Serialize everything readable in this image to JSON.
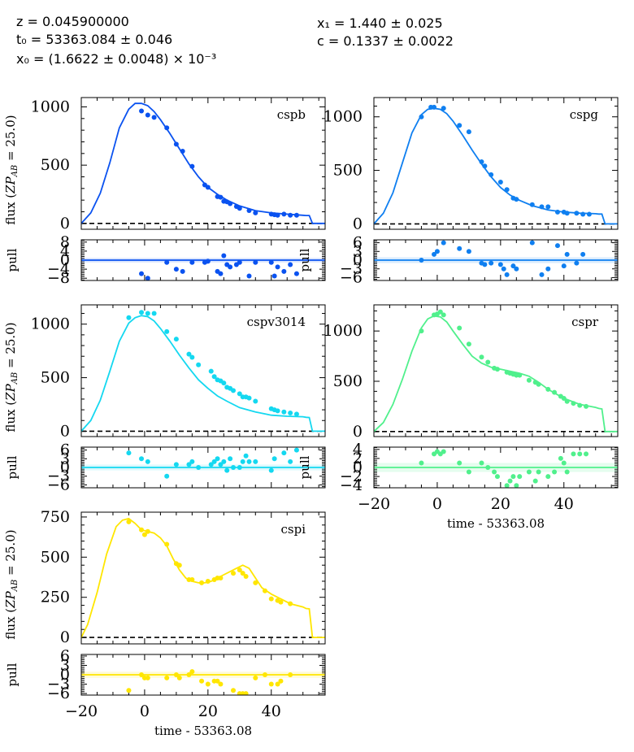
{
  "header": {
    "z": "z = 0.045900000",
    "t0": "t₀ = 53363.084 ± 0.046",
    "x0": "x₀ = (1.6622 ± 0.0048) × 10⁻³",
    "x1": "x₁ = 1.440 ± 0.025",
    "c": "c = 0.1337 ± 0.0022"
  },
  "chart_data": [
    {
      "type": "scatter",
      "band": "cspb",
      "color": "#0a52f0",
      "xlabel": "",
      "ylabel": "flux (ZP_AB = 25.0)",
      "xlim": [
        -20,
        57
      ],
      "flux": {
        "ylim": [
          -50,
          1080
        ],
        "yticks": [
          0,
          500,
          1000
        ],
        "model_x": [
          -20,
          -17,
          -14,
          -11,
          -8,
          -5,
          -3,
          -1,
          1,
          3,
          5,
          8,
          11,
          14,
          17,
          20,
          23,
          26,
          30,
          35,
          40,
          45,
          50,
          51,
          52,
          53,
          57
        ],
        "model_y": [
          0,
          90,
          260,
          520,
          820,
          980,
          1030,
          1030,
          1010,
          960,
          890,
          770,
          640,
          510,
          400,
          310,
          250,
          200,
          150,
          110,
          90,
          80,
          70,
          68,
          68,
          0,
          0
        ],
        "points_x": [
          -1,
          1,
          3,
          7,
          10,
          12,
          15,
          19,
          20,
          23,
          24,
          25,
          26,
          27,
          29,
          30,
          33,
          35,
          40,
          41,
          42,
          44,
          46,
          48
        ],
        "points_y": [
          965,
          930,
          910,
          820,
          680,
          620,
          490,
          330,
          310,
          230,
          225,
          190,
          185,
          170,
          145,
          130,
          110,
          90,
          80,
          75,
          70,
          80,
          70,
          70
        ]
      },
      "pull": {
        "ylim": [
          -9,
          9
        ],
        "yticks": [
          -8,
          -4,
          0,
          4,
          8
        ],
        "yticklabels": [
          "−8",
          "−4",
          "0",
          "4",
          "8"
        ],
        "points_x": [
          -1,
          1,
          7,
          10,
          12,
          15,
          19,
          20,
          23,
          24,
          25,
          26,
          27,
          29,
          30,
          33,
          35,
          40,
          41,
          42,
          44,
          46,
          48
        ],
        "points_y": [
          -6,
          -8,
          -1,
          -4,
          -5,
          -1,
          -1,
          -0.5,
          -5,
          -6,
          2,
          -2,
          -3,
          -2,
          -1,
          -7,
          -1,
          -1,
          -7,
          -3,
          -5,
          -2,
          -6
        ]
      }
    },
    {
      "type": "scatter",
      "band": "cspg",
      "color": "#0f7ff0",
      "xlabel": "",
      "ylabel": "",
      "xlim": [
        -20,
        57
      ],
      "flux": {
        "ylim": [
          -50,
          1180
        ],
        "yticks": [
          0,
          500,
          1000
        ],
        "model_x": [
          -20,
          -17,
          -14,
          -11,
          -8,
          -5,
          -3,
          -1,
          1,
          3,
          5,
          8,
          11,
          14,
          17,
          20,
          23,
          26,
          30,
          35,
          40,
          45,
          50,
          51,
          52,
          53,
          57
        ],
        "model_y": [
          0,
          100,
          290,
          570,
          850,
          1020,
          1070,
          1080,
          1070,
          1030,
          960,
          830,
          690,
          560,
          440,
          340,
          270,
          220,
          170,
          130,
          110,
          100,
          95,
          92,
          92,
          0,
          0
        ],
        "points_x": [
          -5,
          -2,
          -1,
          2,
          7,
          10,
          14,
          15,
          17,
          20,
          22,
          24,
          25,
          30,
          33,
          35,
          38,
          40,
          41,
          44,
          46,
          48
        ],
        "points_y": [
          1000,
          1090,
          1090,
          1080,
          920,
          860,
          580,
          540,
          460,
          390,
          320,
          240,
          230,
          180,
          160,
          160,
          110,
          110,
          100,
          100,
          90,
          90
        ]
      },
      "pull": {
        "ylim": [
          -7,
          7
        ],
        "yticks": [
          -6,
          -3,
          0,
          3,
          6
        ],
        "yticklabels": [
          "−6",
          "−3",
          "0",
          "3",
          "6"
        ],
        "points_x": [
          -5,
          -1,
          0,
          2,
          7,
          10,
          14,
          15,
          17,
          20,
          21,
          22,
          24,
          25,
          30,
          33,
          35,
          38,
          40,
          41,
          44,
          46
        ],
        "points_y": [
          0,
          2,
          3,
          6,
          4,
          3,
          -1,
          -1.5,
          -1,
          -1.5,
          -3,
          -5,
          -2,
          -3,
          6,
          -5,
          -3,
          5,
          -2,
          2,
          -1,
          2
        ]
      }
    },
    {
      "type": "scatter",
      "band": "cspv3014",
      "color": "#14d8f0",
      "xlabel": "",
      "ylabel": "flux (ZP_AB = 25.0)",
      "xlim": [
        -20,
        57
      ],
      "flux": {
        "ylim": [
          -50,
          1180
        ],
        "yticks": [
          0,
          500,
          1000
        ],
        "model_x": [
          -20,
          -17,
          -14,
          -11,
          -8,
          -5,
          -3,
          -1,
          1,
          3,
          5,
          8,
          11,
          14,
          17,
          20,
          23,
          26,
          30,
          35,
          40,
          45,
          50,
          51,
          52,
          53,
          57
        ],
        "model_y": [
          0,
          100,
          290,
          560,
          840,
          1010,
          1060,
          1080,
          1070,
          1030,
          960,
          840,
          710,
          590,
          480,
          400,
          330,
          280,
          220,
          180,
          150,
          140,
          135,
          130,
          128,
          0,
          0
        ],
        "points_x": [
          -5,
          -1,
          1,
          3,
          7,
          10,
          14,
          15,
          17,
          21,
          22,
          23,
          24,
          25,
          26,
          27,
          28,
          30,
          31,
          32,
          33,
          35,
          40,
          41,
          42,
          44,
          46,
          48
        ],
        "points_y": [
          1060,
          1110,
          1100,
          1100,
          930,
          860,
          720,
          690,
          620,
          560,
          510,
          480,
          470,
          450,
          410,
          400,
          380,
          350,
          320,
          320,
          310,
          280,
          210,
          200,
          190,
          180,
          170,
          160
        ]
      },
      "pull": {
        "ylim": [
          -7,
          7
        ],
        "yticks": [
          -6,
          -3,
          0,
          3,
          6
        ],
        "yticklabels": [
          "−6",
          "−3",
          "0",
          "3",
          "6"
        ],
        "points_x": [
          -5,
          -1,
          1,
          7,
          10,
          14,
          15,
          17,
          21,
          22,
          23,
          24,
          25,
          26,
          27,
          28,
          30,
          31,
          32,
          33,
          35,
          40,
          41,
          44,
          46,
          48
        ],
        "points_y": [
          5,
          3,
          2,
          -3,
          1,
          1,
          2,
          0,
          1,
          2,
          3,
          1,
          2,
          -1,
          3,
          0,
          0,
          2,
          4,
          2,
          2,
          -1,
          3,
          5,
          2,
          6
        ]
      }
    },
    {
      "type": "scatter",
      "band": "cspr",
      "color": "#50f08c",
      "xlabel": "time - 53363.08",
      "ylabel": "",
      "xlim": [
        -20,
        57
      ],
      "xticks": [
        -20,
        0,
        20,
        40
      ],
      "xticklabels": [
        "−20",
        "0",
        "20",
        "40"
      ],
      "flux": {
        "ylim": [
          -50,
          1260
        ],
        "yticks": [
          0,
          500,
          1000
        ],
        "model_x": [
          -20,
          -17,
          -14,
          -11,
          -8,
          -5,
          -3,
          -1,
          1,
          3,
          5,
          8,
          11,
          14,
          17,
          20,
          23,
          26,
          29,
          32,
          35,
          40,
          45,
          50,
          51,
          52,
          53,
          57
        ],
        "model_y": [
          0,
          90,
          270,
          520,
          800,
          1030,
          1120,
          1150,
          1140,
          1090,
          1000,
          870,
          750,
          680,
          640,
          620,
          600,
          580,
          550,
          490,
          420,
          330,
          270,
          240,
          230,
          225,
          0,
          0
        ],
        "points_x": [
          -5,
          -1,
          0,
          1,
          2,
          7,
          10,
          14,
          16,
          18,
          19,
          22,
          23,
          24,
          25,
          26,
          29,
          31,
          32,
          35,
          37,
          39,
          40,
          41,
          43,
          45,
          47
        ],
        "points_y": [
          1000,
          1160,
          1170,
          1190,
          1160,
          1030,
          870,
          740,
          690,
          630,
          620,
          590,
          580,
          570,
          560,
          560,
          510,
          490,
          470,
          420,
          390,
          350,
          330,
          300,
          280,
          260,
          250
        ]
      },
      "pull": {
        "ylim": [
          -4.5,
          4.5
        ],
        "yticks": [
          -4,
          -2,
          0,
          2,
          4
        ],
        "yticklabels": [
          "−4",
          "−2",
          "0",
          "2",
          "4"
        ],
        "points_x": [
          -5,
          -1,
          0,
          1,
          2,
          7,
          10,
          14,
          16,
          18,
          19,
          22,
          23,
          24,
          25,
          26,
          29,
          31,
          32,
          35,
          37,
          39,
          40,
          41,
          43,
          45,
          47
        ],
        "points_y": [
          1,
          3,
          3.5,
          3,
          3.5,
          1,
          -1,
          1,
          0,
          -1,
          -2,
          -4,
          -3,
          -2,
          -4,
          -2,
          -1,
          -3,
          -1,
          -2,
          -1,
          2,
          1,
          -1,
          3,
          3,
          3
        ]
      }
    },
    {
      "type": "scatter",
      "band": "cspi",
      "color": "#ffe600",
      "xlabel": "time - 53363.08",
      "ylabel": "flux (ZP_AB = 25.0)",
      "xlim": [
        -20,
        57
      ],
      "xticks": [
        -20,
        0,
        20,
        40
      ],
      "xticklabels": [
        "−20",
        "0",
        "20",
        "40"
      ],
      "flux": {
        "ylim": [
          -40,
          780
        ],
        "yticks": [
          0,
          250,
          500,
          750
        ],
        "model_x": [
          -20,
          -18,
          -15,
          -12,
          -9,
          -7,
          -5,
          -3,
          -1,
          1,
          3,
          5,
          7,
          9,
          11,
          13,
          15,
          17,
          19,
          21,
          23,
          25,
          27,
          29,
          31,
          33,
          35,
          37,
          40,
          43,
          46,
          50,
          51,
          52,
          53,
          57
        ],
        "model_y": [
          0,
          80,
          280,
          520,
          690,
          730,
          740,
          710,
          670,
          660,
          650,
          620,
          570,
          490,
          420,
          370,
          350,
          340,
          340,
          350,
          370,
          390,
          410,
          430,
          450,
          430,
          370,
          310,
          270,
          240,
          210,
          190,
          180,
          178,
          0,
          0
        ],
        "points_x": [
          -5,
          -1,
          0,
          1,
          7,
          10,
          11,
          14,
          15,
          18,
          20,
          22,
          23,
          24,
          28,
          30,
          31,
          32,
          35,
          38,
          40,
          42,
          43,
          46
        ],
        "points_y": [
          720,
          670,
          640,
          660,
          580,
          460,
          450,
          360,
          360,
          340,
          350,
          360,
          370,
          370,
          400,
          420,
          400,
          380,
          340,
          290,
          240,
          230,
          220,
          210
        ]
      },
      "pull": {
        "ylim": [
          -6.5,
          6.5
        ],
        "yticks": [
          -6,
          -3,
          0,
          3,
          6
        ],
        "yticklabels": [
          "−6",
          "−3",
          "0",
          "3",
          "6"
        ],
        "points_x": [
          -5,
          -1,
          0,
          1,
          7,
          10,
          11,
          14,
          15,
          18,
          20,
          22,
          23,
          24,
          28,
          30,
          31,
          32,
          35,
          38,
          40,
          42,
          43,
          46
        ],
        "points_y": [
          -5,
          0,
          -1,
          -1,
          -1,
          0,
          -1,
          0,
          1,
          -2,
          -3,
          -2,
          -2,
          -3,
          -5,
          -6,
          -6,
          -6,
          -1,
          0,
          -3,
          -3,
          -2,
          0
        ]
      }
    }
  ]
}
